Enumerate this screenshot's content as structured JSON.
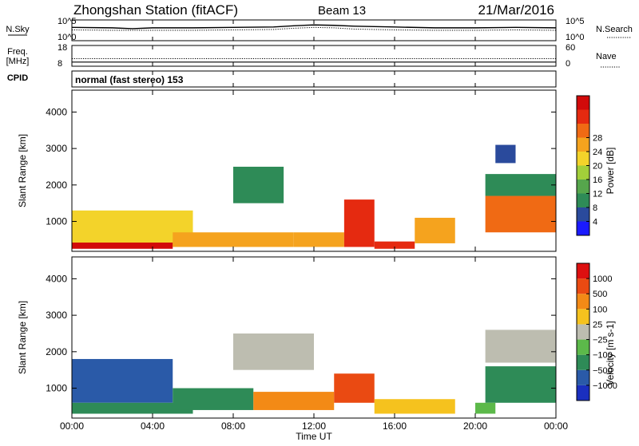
{
  "header": {
    "title": "Zhongshan Station (fitACF)",
    "beam": "Beam 13",
    "date": "21/Mar/2016"
  },
  "chart_data": [
    {
      "type": "line",
      "panel": "noise",
      "left_label": "N.Sky",
      "right_label": "N.Search",
      "left_ticks": [
        "10^5",
        "10^0"
      ],
      "right_ticks": [
        "10^5",
        "10^0"
      ],
      "scale": "log",
      "series": [
        {
          "name": "N.Sky",
          "style": "solid",
          "x": [
            0,
            2,
            3,
            4,
            6,
            8,
            10,
            11,
            12,
            13,
            14,
            16,
            18,
            20,
            22,
            24
          ],
          "y": [
            3.2,
            3.1,
            2.9,
            3.1,
            3.1,
            3.2,
            3.3,
            3.6,
            3.8,
            3.7,
            3.5,
            3.3,
            3.1,
            3.1,
            3.2,
            3.1
          ]
        },
        {
          "name": "N.Search",
          "style": "dotted",
          "x": [
            0,
            2,
            4,
            6,
            8,
            10,
            11,
            12,
            13,
            14,
            16,
            18,
            20,
            22,
            24
          ],
          "y": [
            2.6,
            2.5,
            2.5,
            2.5,
            2.6,
            2.7,
            3.0,
            3.2,
            3.1,
            2.8,
            2.6,
            2.5,
            2.5,
            2.6,
            2.5
          ]
        }
      ]
    },
    {
      "type": "line",
      "panel": "frequency",
      "left_label_1": "Freq.",
      "left_label_2": "[MHz]",
      "right_label": "Nave",
      "left_ticks": [
        "18",
        "8"
      ],
      "right_ticks": [
        "60",
        "0"
      ],
      "series": [
        {
          "name": "Freq.",
          "style": "solid",
          "x": [
            0,
            24
          ],
          "y": [
            10,
            10
          ]
        },
        {
          "name": "Nave",
          "style": "dotted",
          "x": [
            0,
            24
          ],
          "y": [
            22,
            22
          ]
        }
      ]
    },
    {
      "type": "text",
      "panel": "cpid",
      "label": "CPID",
      "mode": "normal (fast stereo) 153"
    },
    {
      "type": "heatmap",
      "panel": "power",
      "ylabel": "Slant Range [km]",
      "yticks": [
        1000,
        2000,
        3000,
        4000
      ],
      "ylim": [
        180,
        4600
      ],
      "colorbar_label": "Power [dB]",
      "colorbar_ticks": [
        "4",
        "8",
        "12",
        "16",
        "20",
        "24",
        "28"
      ],
      "colors": [
        "#1a1aff",
        "#2a4a9c",
        "#2e8b57",
        "#56a64c",
        "#a2cf3a",
        "#f3d32a",
        "#f5a31e",
        "#f06a14",
        "#e52a10",
        "#d20a0a"
      ],
      "regions": [
        {
          "t": [
            0,
            6
          ],
          "r": [
            300,
            1300
          ],
          "level": 5
        },
        {
          "t": [
            0,
            5
          ],
          "r": [
            250,
            420
          ],
          "level": 9
        },
        {
          "t": [
            5,
            11
          ],
          "r": [
            300,
            700
          ],
          "level": 6
        },
        {
          "t": [
            8,
            10.5
          ],
          "r": [
            1500,
            2500
          ],
          "level": 2
        },
        {
          "t": [
            11,
            13.5
          ],
          "r": [
            300,
            700
          ],
          "level": 6
        },
        {
          "t": [
            13.5,
            15
          ],
          "r": [
            300,
            1600
          ],
          "level": 8
        },
        {
          "t": [
            15,
            17
          ],
          "r": [
            250,
            450
          ],
          "level": 8
        },
        {
          "t": [
            17,
            19
          ],
          "r": [
            400,
            1100
          ],
          "level": 6
        },
        {
          "t": [
            20.5,
            24
          ],
          "r": [
            700,
            1700
          ],
          "level": 7
        },
        {
          "t": [
            20.5,
            24
          ],
          "r": [
            1700,
            2300
          ],
          "level": 2
        },
        {
          "t": [
            21,
            22
          ],
          "r": [
            2600,
            3100
          ],
          "level": 1
        }
      ]
    },
    {
      "type": "heatmap",
      "panel": "velocity",
      "xlabel": "Time UT",
      "xticks": [
        "00:00",
        "04:00",
        "08:00",
        "12:00",
        "16:00",
        "20:00",
        "00:00"
      ],
      "xlim": [
        0,
        24
      ],
      "ylabel": "Slant Range [km]",
      "yticks": [
        1000,
        2000,
        3000,
        4000
      ],
      "ylim": [
        180,
        4600
      ],
      "colorbar_label": "Velocity [m s-1]",
      "colorbar_ticks": [
        "1000",
        "500",
        "100",
        "25",
        "−25",
        "−100",
        "−500",
        "−1000"
      ],
      "colors": [
        "#1a2fbf",
        "#2a5aa8",
        "#2e8b57",
        "#5cb94a",
        "#bdbdb0",
        "#f5c21e",
        "#f38a16",
        "#ea4a12",
        "#dd1010"
      ],
      "regions": [
        {
          "t": [
            0,
            5
          ],
          "r": [
            600,
            1800
          ],
          "level": 1
        },
        {
          "t": [
            0,
            6
          ],
          "r": [
            300,
            600
          ],
          "level": 2
        },
        {
          "t": [
            5,
            9
          ],
          "r": [
            400,
            1000
          ],
          "level": 2
        },
        {
          "t": [
            9,
            13
          ],
          "r": [
            400,
            900
          ],
          "level": 6
        },
        {
          "t": [
            13,
            15
          ],
          "r": [
            600,
            1400
          ],
          "level": 7
        },
        {
          "t": [
            8,
            12
          ],
          "r": [
            1500,
            2500
          ],
          "level": 4
        },
        {
          "t": [
            15,
            19
          ],
          "r": [
            300,
            700
          ],
          "level": 5
        },
        {
          "t": [
            20.5,
            24
          ],
          "r": [
            600,
            1600
          ],
          "level": 2
        },
        {
          "t": [
            20.5,
            24
          ],
          "r": [
            1700,
            2600
          ],
          "level": 4
        },
        {
          "t": [
            20,
            21
          ],
          "r": [
            300,
            600
          ],
          "level": 3
        }
      ]
    }
  ]
}
